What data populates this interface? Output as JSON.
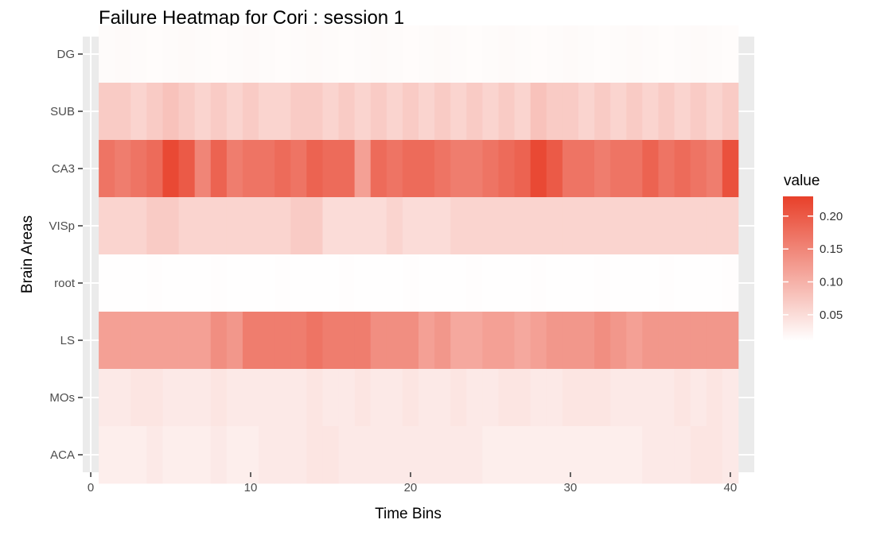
{
  "chart_data": {
    "type": "heatmap",
    "title": "Failure Heatmap for Cori : session 1",
    "xlabel": "Time Bins",
    "ylabel": "Brain Areas",
    "xlim": [
      -0.5,
      41.5
    ],
    "x_ticks": [
      0,
      10,
      20,
      30,
      40
    ],
    "x": [
      1,
      2,
      3,
      4,
      5,
      6,
      7,
      8,
      9,
      10,
      11,
      12,
      13,
      14,
      15,
      16,
      17,
      18,
      19,
      20,
      21,
      22,
      23,
      24,
      25,
      26,
      27,
      28,
      29,
      30,
      31,
      32,
      33,
      34,
      35,
      36,
      37,
      38,
      39,
      40
    ],
    "y_categories": [
      "ACA",
      "MOs",
      "LS",
      "root",
      "VISp",
      "CA3",
      "SUB",
      "DG"
    ],
    "rows": [
      {
        "area": "DG",
        "values": [
          0.015,
          0.016,
          0.015,
          0.014,
          0.015,
          0.016,
          0.015,
          0.014,
          0.015,
          0.016,
          0.015,
          0.014,
          0.015,
          0.016,
          0.015,
          0.014,
          0.015,
          0.016,
          0.015,
          0.014,
          0.015,
          0.016,
          0.015,
          0.014,
          0.015,
          0.016,
          0.015,
          0.014,
          0.015,
          0.016,
          0.015,
          0.014,
          0.015,
          0.016,
          0.015,
          0.014,
          0.015,
          0.016,
          0.015,
          0.014
        ]
      },
      {
        "area": "SUB",
        "values": [
          0.07,
          0.07,
          0.06,
          0.07,
          0.08,
          0.07,
          0.06,
          0.07,
          0.06,
          0.07,
          0.06,
          0.06,
          0.07,
          0.07,
          0.06,
          0.07,
          0.06,
          0.07,
          0.06,
          0.07,
          0.06,
          0.07,
          0.06,
          0.07,
          0.06,
          0.07,
          0.06,
          0.08,
          0.07,
          0.07,
          0.06,
          0.07,
          0.06,
          0.07,
          0.06,
          0.07,
          0.06,
          0.07,
          0.06,
          0.07
        ]
      },
      {
        "area": "CA3",
        "values": [
          0.17,
          0.16,
          0.17,
          0.18,
          0.22,
          0.2,
          0.15,
          0.19,
          0.16,
          0.17,
          0.17,
          0.18,
          0.17,
          0.19,
          0.18,
          0.18,
          0.12,
          0.18,
          0.17,
          0.18,
          0.18,
          0.17,
          0.16,
          0.16,
          0.17,
          0.18,
          0.19,
          0.22,
          0.2,
          0.17,
          0.17,
          0.16,
          0.17,
          0.17,
          0.19,
          0.17,
          0.18,
          0.17,
          0.16,
          0.21
        ]
      },
      {
        "area": "VISp",
        "values": [
          0.06,
          0.06,
          0.06,
          0.07,
          0.07,
          0.06,
          0.06,
          0.06,
          0.06,
          0.06,
          0.06,
          0.06,
          0.07,
          0.07,
          0.05,
          0.05,
          0.05,
          0.05,
          0.06,
          0.05,
          0.05,
          0.05,
          0.06,
          0.06,
          0.06,
          0.06,
          0.06,
          0.06,
          0.06,
          0.06,
          0.06,
          0.06,
          0.06,
          0.06,
          0.06,
          0.06,
          0.06,
          0.06,
          0.06,
          0.06
        ]
      },
      {
        "area": "root",
        "values": [
          0.011,
          0.011,
          0.011,
          0.012,
          0.011,
          0.011,
          0.011,
          0.012,
          0.011,
          0.011,
          0.011,
          0.012,
          0.011,
          0.011,
          0.011,
          0.012,
          0.011,
          0.011,
          0.011,
          0.012,
          0.011,
          0.011,
          0.011,
          0.012,
          0.011,
          0.011,
          0.011,
          0.012,
          0.011,
          0.011,
          0.011,
          0.012,
          0.011,
          0.011,
          0.011,
          0.012,
          0.011,
          0.011,
          0.011,
          0.012
        ]
      },
      {
        "area": "LS",
        "values": [
          0.12,
          0.12,
          0.12,
          0.12,
          0.12,
          0.12,
          0.12,
          0.14,
          0.13,
          0.16,
          0.16,
          0.16,
          0.16,
          0.17,
          0.16,
          0.16,
          0.16,
          0.14,
          0.14,
          0.14,
          0.12,
          0.13,
          0.11,
          0.11,
          0.12,
          0.12,
          0.11,
          0.12,
          0.13,
          0.13,
          0.13,
          0.14,
          0.13,
          0.12,
          0.13,
          0.13,
          0.13,
          0.13,
          0.13,
          0.13
        ]
      },
      {
        "area": "MOs",
        "values": [
          0.035,
          0.035,
          0.04,
          0.04,
          0.035,
          0.035,
          0.035,
          0.04,
          0.035,
          0.035,
          0.035,
          0.035,
          0.035,
          0.04,
          0.035,
          0.035,
          0.04,
          0.035,
          0.035,
          0.04,
          0.035,
          0.035,
          0.04,
          0.035,
          0.035,
          0.04,
          0.04,
          0.035,
          0.035,
          0.04,
          0.04,
          0.04,
          0.035,
          0.035,
          0.035,
          0.035,
          0.04,
          0.035,
          0.04,
          0.035
        ]
      },
      {
        "area": "ACA",
        "values": [
          0.03,
          0.03,
          0.03,
          0.035,
          0.03,
          0.03,
          0.03,
          0.035,
          0.03,
          0.03,
          0.035,
          0.035,
          0.035,
          0.04,
          0.04,
          0.035,
          0.035,
          0.035,
          0.035,
          0.035,
          0.035,
          0.035,
          0.035,
          0.035,
          0.03,
          0.03,
          0.03,
          0.03,
          0.03,
          0.03,
          0.03,
          0.03,
          0.03,
          0.03,
          0.035,
          0.035,
          0.035,
          0.04,
          0.04,
          0.035
        ]
      }
    ],
    "legend": {
      "title": "value",
      "position": "right",
      "ticks": [
        0.05,
        0.1,
        0.15,
        0.2
      ],
      "tick_labels": [
        "0.05",
        "0.10",
        "0.15",
        "0.20"
      ],
      "range": [
        0.01,
        0.23
      ],
      "low_color": "#ffffff",
      "high_color": "#e8402a"
    },
    "panel_background": "#ebebeb",
    "grid": true
  }
}
